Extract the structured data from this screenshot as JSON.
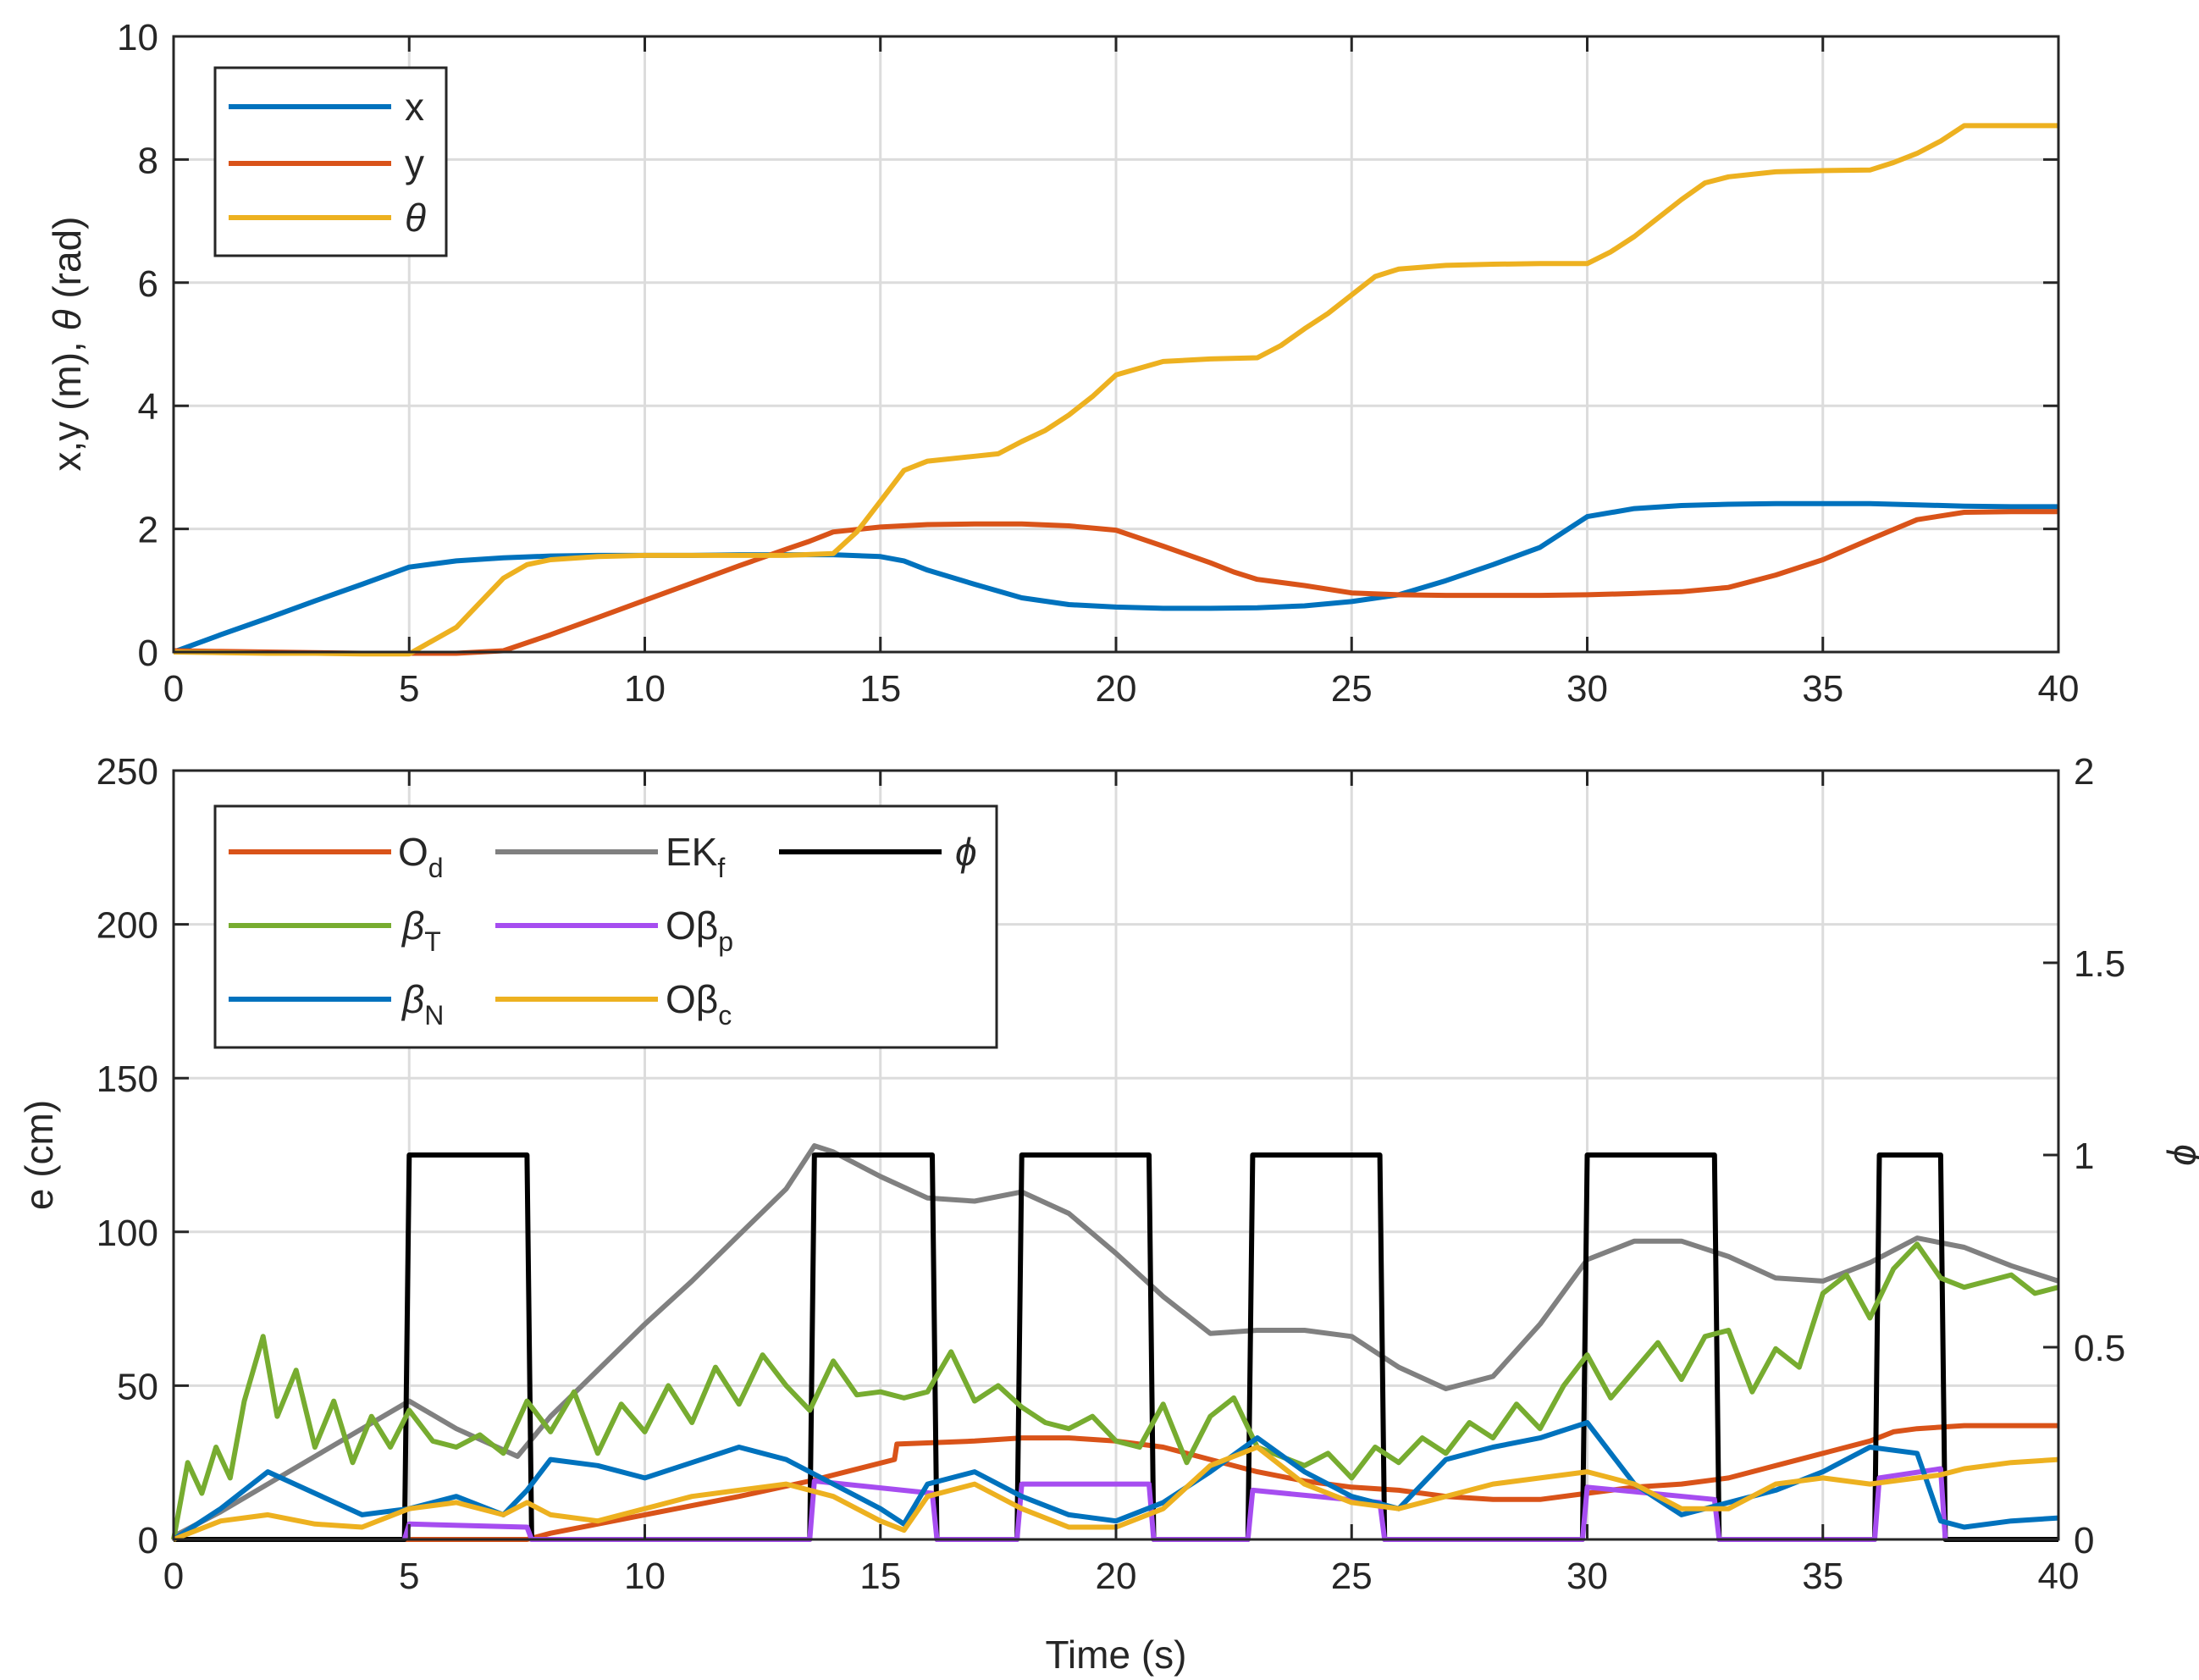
{
  "chart_data": [
    {
      "type": "line",
      "xlabel": "",
      "ylabel": "x,y (m), θ (rad)",
      "xlim": [
        0,
        40
      ],
      "ylim": [
        0,
        10
      ],
      "xticks": [
        "0",
        "5",
        "10",
        "15",
        "20",
        "25",
        "30",
        "35",
        "40"
      ],
      "yticks": [
        "0",
        "2",
        "4",
        "6",
        "8",
        "10"
      ],
      "legend": {
        "placement": "top-left"
      },
      "series": [
        {
          "name": "x",
          "label": "x",
          "color": "#0072BD",
          "x": [
            0,
            1,
            2,
            3,
            4,
            5,
            6,
            7,
            8,
            9,
            10,
            11,
            12,
            13,
            14,
            15,
            15.5,
            16,
            17,
            18,
            19,
            20,
            21,
            22,
            23,
            24,
            25,
            26,
            27,
            28,
            29,
            30,
            31,
            32,
            33,
            34,
            35,
            36,
            37,
            38,
            39,
            40
          ],
          "y": [
            0,
            0.28,
            0.55,
            0.83,
            1.1,
            1.38,
            1.48,
            1.53,
            1.56,
            1.57,
            1.57,
            1.57,
            1.58,
            1.58,
            1.58,
            1.55,
            1.48,
            1.33,
            1.1,
            0.88,
            0.77,
            0.73,
            0.71,
            0.71,
            0.72,
            0.75,
            0.82,
            0.93,
            1.16,
            1.42,
            1.7,
            2.2,
            2.33,
            2.38,
            2.4,
            2.41,
            2.41,
            2.41,
            2.39,
            2.37,
            2.36,
            2.36
          ]
        },
        {
          "name": "y",
          "label": "y",
          "color": "#D95319",
          "x": [
            0,
            1,
            2,
            3,
            4,
            5,
            6,
            7,
            8,
            9,
            10,
            11,
            12,
            13,
            13.5,
            14,
            15,
            16,
            17,
            18,
            19,
            20,
            21,
            22,
            22.5,
            23,
            24,
            25,
            26,
            27,
            28,
            29,
            30,
            31,
            32,
            33,
            34,
            35,
            36,
            37,
            38,
            39,
            40
          ],
          "y": [
            0.02,
            0.01,
            0,
            -0.01,
            -0.02,
            -0.02,
            -0.02,
            0.02,
            0.28,
            0.56,
            0.84,
            1.12,
            1.4,
            1.67,
            1.8,
            1.95,
            2.03,
            2.07,
            2.08,
            2.08,
            2.05,
            1.98,
            1.72,
            1.45,
            1.3,
            1.18,
            1.08,
            0.96,
            0.93,
            0.92,
            0.92,
            0.92,
            0.93,
            0.95,
            0.98,
            1.05,
            1.25,
            1.5,
            1.83,
            2.15,
            2.27,
            2.28,
            2.28
          ]
        },
        {
          "name": "theta",
          "label": "θ",
          "color": "#EDB120",
          "x": [
            0,
            1,
            2,
            3,
            4,
            5,
            6,
            6.5,
            7,
            7.5,
            8,
            9,
            10,
            11,
            12,
            13,
            14,
            14.5,
            15,
            15.5,
            16,
            17,
            17.5,
            18,
            18.5,
            19,
            19.5,
            20,
            21,
            22,
            23,
            23.5,
            24,
            24.5,
            25,
            25.5,
            26,
            27,
            28,
            29,
            30,
            30.5,
            31,
            31.5,
            32,
            32.5,
            33,
            34,
            35,
            36,
            36.5,
            37,
            37.5,
            38,
            39,
            40
          ],
          "y": [
            0,
            -0.01,
            -0.02,
            -0.02,
            -0.03,
            -0.03,
            0.4,
            0.8,
            1.2,
            1.42,
            1.5,
            1.55,
            1.57,
            1.57,
            1.57,
            1.57,
            1.6,
            1.95,
            2.45,
            2.95,
            3.1,
            3.18,
            3.22,
            3.42,
            3.6,
            3.85,
            4.15,
            4.5,
            4.72,
            4.76,
            4.78,
            4.98,
            5.25,
            5.5,
            5.8,
            6.1,
            6.22,
            6.28,
            6.3,
            6.31,
            6.31,
            6.5,
            6.75,
            7.05,
            7.35,
            7.62,
            7.72,
            7.8,
            7.82,
            7.83,
            7.95,
            8.1,
            8.3,
            8.55,
            8.55,
            8.55
          ]
        }
      ]
    },
    {
      "type": "line",
      "xlabel": "Time (s)",
      "ylabel": "e (cm)",
      "ylabel_right": "ϕ",
      "xlim": [
        0,
        40
      ],
      "ylim": [
        0,
        250
      ],
      "ylim_right": [
        0,
        2
      ],
      "xticks": [
        "0",
        "5",
        "10",
        "15",
        "20",
        "25",
        "30",
        "35",
        "40"
      ],
      "yticks": [
        "0",
        "50",
        "100",
        "150",
        "200",
        "250"
      ],
      "yticks_right": [
        "0",
        "0.5",
        "1",
        "1.5",
        "2"
      ],
      "legend": {
        "placement": "top-left",
        "columns": 3
      },
      "series": [
        {
          "name": "O_d",
          "label": "O",
          "sub": "d",
          "axis": "left",
          "color": "#D95319",
          "x": [
            0,
            7.5,
            8,
            10,
            12,
            13.5,
            15.3,
            15.35,
            17,
            18,
            19,
            20,
            21,
            22,
            23,
            24,
            25,
            26,
            27,
            28,
            29,
            30,
            31,
            32,
            33,
            34,
            35,
            36,
            36.5,
            37,
            38,
            39,
            40
          ],
          "y": [
            0,
            0,
            2,
            8,
            14,
            19,
            26,
            31,
            32,
            33,
            33,
            32,
            30,
            26,
            22,
            19,
            17,
            16,
            14,
            13,
            13,
            15,
            17,
            18,
            20,
            24,
            28,
            32,
            35,
            36,
            37,
            37,
            37
          ]
        },
        {
          "name": "EK_f",
          "label": "EK",
          "sub": "f",
          "axis": "left",
          "color": "#808080",
          "x": [
            0,
            1,
            2,
            3,
            4,
            5,
            6,
            7.3,
            8,
            9,
            10,
            11,
            12,
            13,
            13.6,
            14,
            15,
            16,
            17,
            18,
            19,
            20,
            21,
            22,
            23,
            24,
            25,
            26,
            27,
            28,
            29,
            30,
            31,
            32,
            33,
            34,
            35,
            36,
            37,
            38,
            39,
            40
          ],
          "y": [
            1,
            9,
            18,
            27,
            36,
            45,
            36,
            27,
            40,
            55,
            70,
            84,
            99,
            114,
            128,
            126,
            118,
            111,
            110,
            113,
            106,
            93,
            79,
            67,
            68,
            68,
            66,
            56,
            49,
            53,
            70,
            91,
            97,
            97,
            92,
            85,
            84,
            90,
            98,
            95,
            89,
            84
          ]
        },
        {
          "name": "phi",
          "label": "ϕ",
          "axis": "right",
          "color": "#000000",
          "x": [
            0,
            4.9,
            5,
            7.5,
            7.6,
            13.5,
            13.6,
            16.1,
            16.2,
            17.9,
            18,
            20.7,
            20.8,
            22.8,
            22.9,
            25.6,
            25.7,
            29.9,
            30,
            32.7,
            32.8,
            36.1,
            36.2,
            37.5,
            37.6,
            40
          ],
          "y": [
            0,
            0,
            1,
            1,
            0,
            0,
            1,
            1,
            0,
            0,
            1,
            1,
            0,
            0,
            1,
            1,
            0,
            0,
            1,
            1,
            0,
            0,
            1,
            1,
            0,
            0
          ]
        },
        {
          "name": "beta_T",
          "label": "β",
          "sub": "T",
          "axis": "left",
          "color": "#77AC30",
          "x": [
            0,
            0.3,
            0.6,
            0.9,
            1.2,
            1.5,
            1.9,
            2.2,
            2.6,
            3,
            3.4,
            3.8,
            4.2,
            4.6,
            5,
            5.5,
            6,
            6.5,
            7,
            7.5,
            8,
            8.5,
            9,
            9.5,
            10,
            10.5,
            11,
            11.5,
            12,
            12.5,
            13,
            13.5,
            14,
            14.5,
            15,
            15.5,
            16,
            16.5,
            17,
            17.5,
            18,
            18.5,
            19,
            19.5,
            20,
            20.5,
            21,
            21.5,
            22,
            22.5,
            23,
            23.5,
            24,
            24.5,
            25,
            25.5,
            26,
            26.5,
            27,
            27.5,
            28,
            28.5,
            29,
            29.5,
            30,
            30.5,
            31,
            31.5,
            32,
            32.5,
            33,
            33.5,
            34,
            34.5,
            35,
            35.5,
            36,
            36.5,
            37,
            37.5,
            38,
            38.5,
            39,
            39.5,
            40
          ],
          "y": [
            0,
            25,
            15,
            30,
            20,
            45,
            66,
            40,
            55,
            30,
            45,
            25,
            40,
            30,
            42,
            32,
            30,
            34,
            28,
            45,
            35,
            48,
            28,
            44,
            35,
            50,
            38,
            56,
            44,
            60,
            50,
            42,
            58,
            47,
            48,
            46,
            48,
            61,
            45,
            50,
            43,
            38,
            36,
            40,
            32,
            30,
            44,
            25,
            40,
            46,
            30,
            27,
            24,
            28,
            20,
            30,
            25,
            33,
            28,
            38,
            33,
            44,
            36,
            50,
            60,
            46,
            55,
            64,
            52,
            66,
            68,
            48,
            62,
            56,
            80,
            86,
            72,
            88,
            96,
            85,
            82,
            84,
            86,
            80,
            82
          ]
        },
        {
          "name": "O_beta_p",
          "label": "Oβ",
          "sub": "p",
          "axis": "left",
          "color": "#A64DF0",
          "x": [
            4.9,
            5,
            7.5,
            7.6,
            13.5,
            13.6,
            16.1,
            16.2,
            17.9,
            18,
            20.7,
            20.8,
            22.8,
            22.9,
            25.6,
            25.7,
            29.9,
            30,
            32.7,
            32.8,
            36.1,
            36.2,
            37.5,
            37.6
          ],
          "y": [
            0,
            5,
            4,
            0,
            0,
            19,
            15,
            0,
            0,
            18,
            18,
            0,
            0,
            16,
            12,
            0,
            0,
            17,
            13,
            0,
            0,
            20,
            23,
            0
          ]
        },
        {
          "name": "beta_N",
          "label": "β",
          "sub": "N",
          "axis": "left",
          "color": "#0072BD",
          "x": [
            0,
            1,
            2,
            3,
            4,
            5,
            6,
            7,
            7.5,
            8,
            9,
            10,
            11,
            12,
            13,
            14,
            15,
            15.5,
            16,
            16.5,
            17,
            18,
            19,
            20,
            21,
            22,
            23,
            24,
            25,
            26,
            27,
            28,
            29,
            30,
            31,
            32,
            33,
            34,
            35,
            36,
            37,
            37.5,
            38,
            39,
            40
          ],
          "y": [
            0,
            10,
            22,
            15,
            8,
            10,
            14,
            8,
            16,
            26,
            24,
            20,
            25,
            30,
            26,
            18,
            10,
            5,
            18,
            20,
            22,
            14,
            8,
            6,
            12,
            22,
            33,
            22,
            14,
            10,
            26,
            30,
            33,
            38,
            18,
            8,
            12,
            16,
            22,
            30,
            28,
            6,
            4,
            6,
            7
          ]
        },
        {
          "name": "O_beta_c",
          "label": "Oβ",
          "sub": "c",
          "axis": "left",
          "color": "#EDB120",
          "x": [
            0,
            1,
            2,
            3,
            4,
            5,
            6,
            7,
            7.5,
            8,
            9,
            10,
            11,
            12,
            13,
            14,
            15,
            15.5,
            16,
            16.5,
            17,
            18,
            19,
            20,
            21,
            22,
            23,
            24,
            25,
            26,
            27,
            28,
            29,
            30,
            31,
            32,
            33,
            34,
            35,
            36,
            37,
            37.5,
            38,
            39,
            40
          ],
          "y": [
            0,
            6,
            8,
            5,
            4,
            10,
            12,
            8,
            12,
            8,
            6,
            10,
            14,
            16,
            18,
            14,
            6,
            3,
            14,
            16,
            18,
            10,
            4,
            4,
            10,
            24,
            30,
            18,
            12,
            10,
            14,
            18,
            20,
            22,
            18,
            10,
            10,
            18,
            20,
            18,
            20,
            21,
            23,
            25,
            26
          ]
        }
      ]
    }
  ]
}
